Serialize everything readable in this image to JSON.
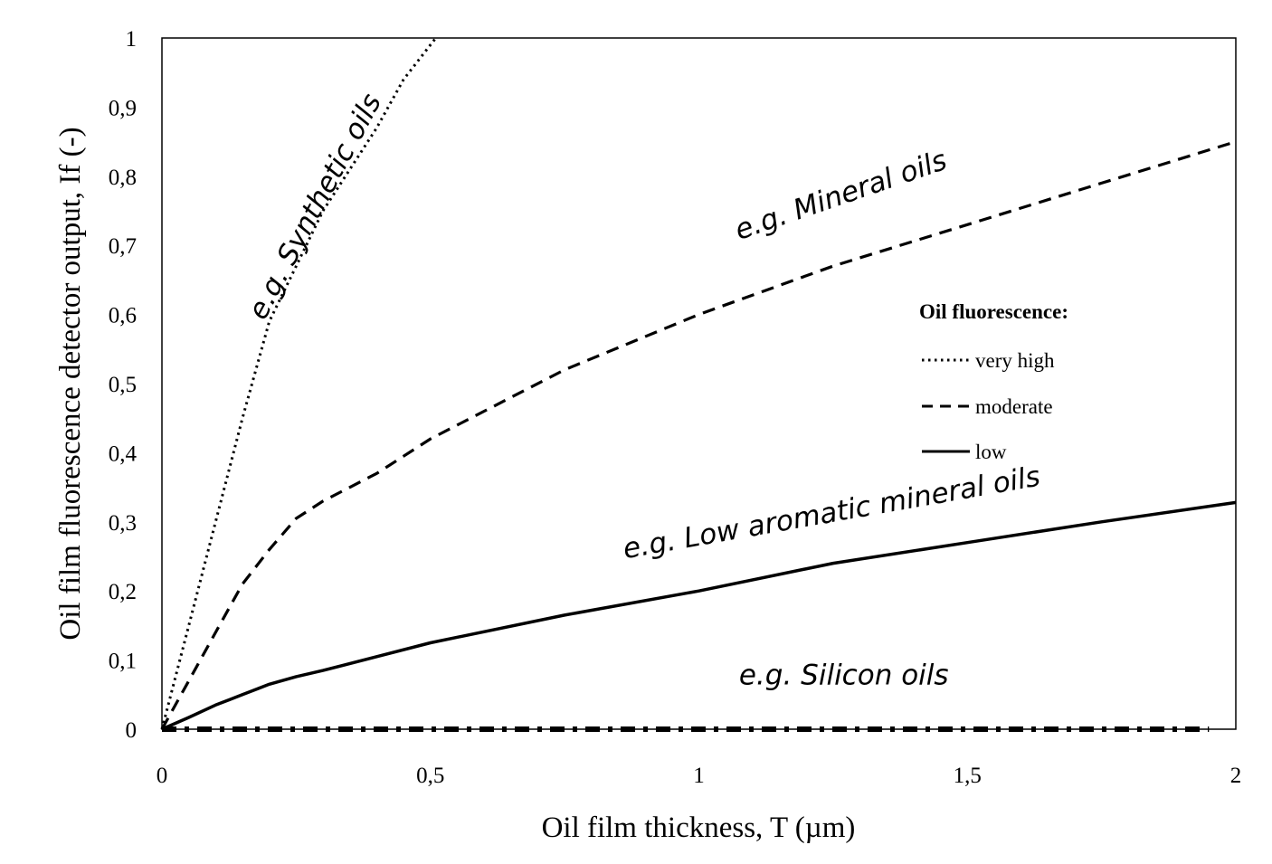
{
  "chart_data": {
    "type": "line",
    "xlabel": "Oil film thickness, T (µm)",
    "ylabel": "Oil film fluorescence detector output, If (-)",
    "xlim": [
      0,
      2
    ],
    "ylim": [
      0,
      1
    ],
    "x_ticks": [
      "0",
      "0,5",
      "1",
      "1,5",
      "2"
    ],
    "y_ticks": [
      "0",
      "0,1",
      "0,2",
      "0,3",
      "0,4",
      "0,5",
      "0,6",
      "0,7",
      "0,8",
      "0,9",
      "1"
    ],
    "grid": false,
    "legend": {
      "title": "Oil fluorescence:",
      "position": "right",
      "entries": [
        "very high",
        "moderate",
        "low"
      ]
    },
    "series": [
      {
        "name": "very high",
        "style": "dotted",
        "x": [
          0,
          0.05,
          0.1,
          0.15,
          0.2,
          0.25,
          0.3,
          0.35,
          0.4,
          0.45,
          0.51
        ],
        "y": [
          0,
          0.15,
          0.3,
          0.45,
          0.59,
          0.67,
          0.75,
          0.81,
          0.87,
          0.94,
          1.0
        ]
      },
      {
        "name": "moderate",
        "style": "dashed",
        "x": [
          0,
          0.05,
          0.1,
          0.15,
          0.2,
          0.25,
          0.3,
          0.4,
          0.5,
          0.75,
          1.0,
          1.25,
          1.5,
          1.75,
          2.0
        ],
        "y": [
          0,
          0.07,
          0.14,
          0.21,
          0.26,
          0.305,
          0.33,
          0.37,
          0.42,
          0.52,
          0.6,
          0.67,
          0.73,
          0.79,
          0.85
        ]
      },
      {
        "name": "low",
        "style": "solid",
        "x": [
          0,
          0.05,
          0.1,
          0.15,
          0.2,
          0.25,
          0.3,
          0.4,
          0.5,
          0.75,
          1.0,
          1.25,
          1.5,
          1.75,
          2.0
        ],
        "y": [
          0,
          0.017,
          0.035,
          0.05,
          0.065,
          0.076,
          0.085,
          0.105,
          0.125,
          0.165,
          0.2,
          0.24,
          0.27,
          0.3,
          0.328
        ]
      },
      {
        "name": "",
        "style": "dash-dot",
        "x": [
          0,
          0.5,
          1.0,
          1.5,
          1.95
        ],
        "y": [
          0,
          0,
          0,
          0,
          0
        ]
      }
    ],
    "annotations": [
      {
        "text": "e.g. Synthetic oils",
        "x": 0.3,
        "y": 0.75,
        "angle": -62
      },
      {
        "text": "e.g. Mineral oils",
        "x": 1.27,
        "y": 0.76,
        "angle": -19
      },
      {
        "text": "e.g. Low aromatic mineral oils",
        "x": 1.25,
        "y": 0.3,
        "angle": -10
      },
      {
        "text": "e.g. Silicon oils",
        "x": 1.27,
        "y": 0.065,
        "angle": 0
      }
    ]
  }
}
